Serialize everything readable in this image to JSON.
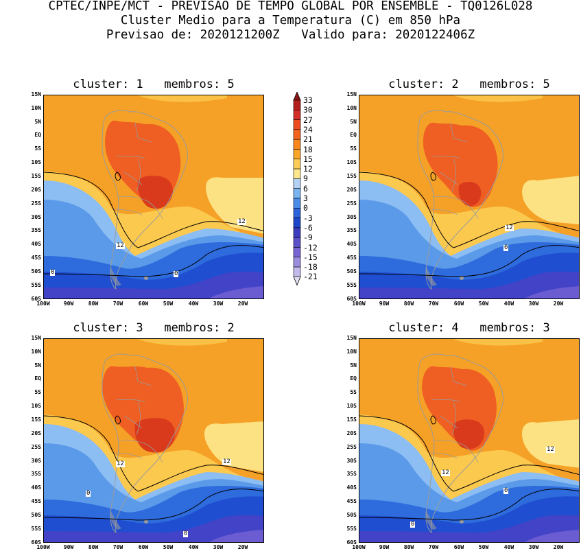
{
  "header": {
    "line1": "CPTEC/INPE/MCT - PREVISAO DE TEMPO GLOBAL POR ENSEMBLE - TQ0126L028",
    "line2": "Cluster Medio para a Temperatura (C) em 850 hPa",
    "line3": "Previsao de: 2020121200Z   Valido para: 2020122406Z"
  },
  "panels": [
    {
      "title": "cluster: 1   membros: 5",
      "contour_labels": [
        "12",
        "12",
        "0",
        "0"
      ]
    },
    {
      "title": "cluster: 2   membros: 5",
      "contour_labels": [
        "12",
        "0"
      ]
    },
    {
      "title": "cluster: 3   membros: 2",
      "contour_labels": [
        "12",
        "12",
        "0",
        "0"
      ]
    },
    {
      "title": "cluster: 4   membros: 3",
      "contour_labels": [
        "12",
        "12",
        "0",
        "0"
      ]
    }
  ],
  "lat_labels": [
    "15N",
    "10N",
    "5N",
    "EQ",
    "5S",
    "10S",
    "15S",
    "20S",
    "25S",
    "30S",
    "35S",
    "40S",
    "45S",
    "50S",
    "55S",
    "60S"
  ],
  "lon_labels": [
    "100W",
    "90W",
    "80W",
    "70W",
    "60W",
    "50W",
    "40W",
    "30W",
    "20W"
  ],
  "colorbar": {
    "labels": [
      "33",
      "30",
      "27",
      "24",
      "21",
      "18",
      "15",
      "12",
      "9",
      "6",
      "3",
      "0",
      "-3",
      "-6",
      "-9",
      "-12",
      "-15",
      "-18",
      "-21"
    ],
    "colors": [
      "#8c1616",
      "#b41e1e",
      "#d22d28",
      "#eb4b1e",
      "#f5641e",
      "#fa871e",
      "#fba62a",
      "#fccc5a",
      "#fde68c",
      "#b4d2f5",
      "#78b4f0",
      "#4b8ce6",
      "#2d64dc",
      "#1e46c8",
      "#3c3cbe",
      "#5a50c8",
      "#7864d2",
      "#9b8cdc",
      "#c3b9eb",
      "#e6e1f5"
    ]
  },
  "map_colors": {
    "hot": "#d93a1c",
    "warm": "#ef5e22",
    "orange": "#f5a127",
    "lightorange": "#fcc94f",
    "yellow": "#fde283",
    "lightblue": "#8cbdf3",
    "midblue": "#5b9ae9",
    "blue": "#2e6bdc",
    "darkblue": "#1f4ed0",
    "indigo": "#4343c8",
    "violet": "#6b5cd2",
    "coast": "#9b9b9b",
    "contour": "#000000"
  }
}
